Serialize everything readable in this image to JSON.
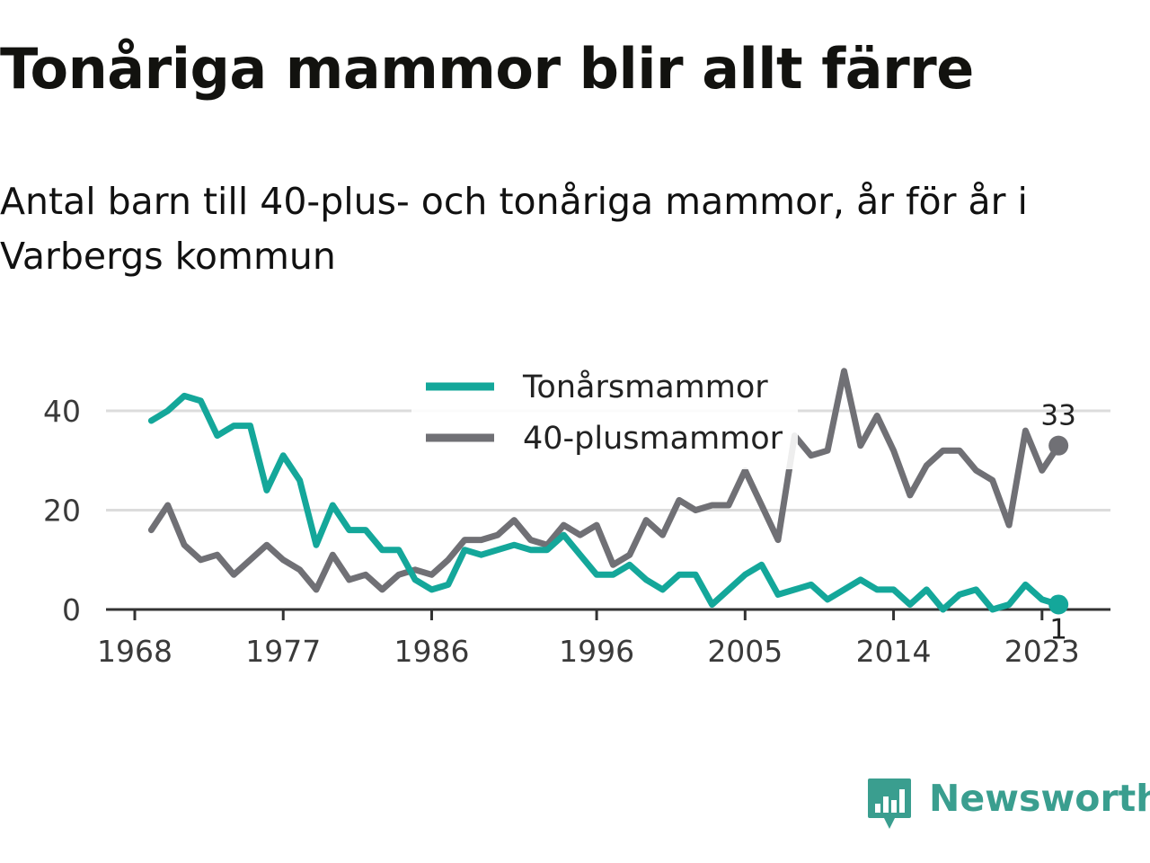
{
  "title": "Tonåriga mammor blir allt färre",
  "subtitle": "Antal barn till 40-plus- och tonåriga mammor, år för år i Varbergs kommun",
  "logo_text": "Newsworthy",
  "colors": {
    "teen": "#14a79a",
    "forty": "#707075",
    "grid": "#dcdcdc",
    "axis": "#333333",
    "brand": "#3a9e8f"
  },
  "chart_data": {
    "type": "line",
    "title": "Tonåriga mammor blir allt färre",
    "subtitle": "Antal barn till 40-plus- och tonåriga mammor, år för år i Varbergs kommun",
    "x": [
      1969,
      1970,
      1971,
      1972,
      1973,
      1974,
      1975,
      1976,
      1977,
      1978,
      1979,
      1980,
      1981,
      1982,
      1983,
      1984,
      1985,
      1986,
      1987,
      1988,
      1989,
      1990,
      1991,
      1992,
      1993,
      1994,
      1995,
      1996,
      1997,
      1998,
      1999,
      2000,
      2001,
      2002,
      2003,
      2004,
      2005,
      2006,
      2007,
      2008,
      2009,
      2010,
      2011,
      2012,
      2013,
      2014,
      2015,
      2016,
      2017,
      2018,
      2019,
      2020,
      2021,
      2022,
      2023,
      2024
    ],
    "x_ticks": [
      "1968",
      "1977",
      "1986",
      "1996",
      "2005",
      "2014",
      "2023"
    ],
    "y_ticks": [
      "0",
      "20",
      "40"
    ],
    "ylim": [
      0,
      50
    ],
    "grid": true,
    "legend_position": "top-center",
    "series": [
      {
        "name": "Tonårsmammor",
        "color": "#14a79a",
        "values": [
          38,
          40,
          43,
          42,
          35,
          37,
          37,
          24,
          31,
          26,
          13,
          21,
          16,
          16,
          12,
          12,
          6,
          4,
          5,
          12,
          11,
          12,
          13,
          12,
          12,
          15,
          11,
          7,
          7,
          9,
          6,
          4,
          7,
          7,
          1,
          4,
          7,
          9,
          3,
          4,
          5,
          2,
          4,
          6,
          4,
          4,
          1,
          4,
          0,
          3,
          4,
          0,
          1,
          5,
          2,
          1
        ],
        "end_label": "1"
      },
      {
        "name": "40-plusmammor",
        "color": "#707075",
        "values": [
          16,
          21,
          13,
          10,
          11,
          7,
          10,
          13,
          10,
          8,
          4,
          11,
          6,
          7,
          4,
          7,
          8,
          7,
          10,
          14,
          14,
          15,
          18,
          14,
          13,
          17,
          15,
          17,
          9,
          11,
          18,
          15,
          22,
          20,
          21,
          21,
          28,
          21,
          14,
          35,
          31,
          32,
          48,
          33,
          39,
          32,
          23,
          29,
          32,
          32,
          28,
          26,
          17,
          36,
          28,
          33
        ],
        "end_label": "33"
      }
    ]
  }
}
